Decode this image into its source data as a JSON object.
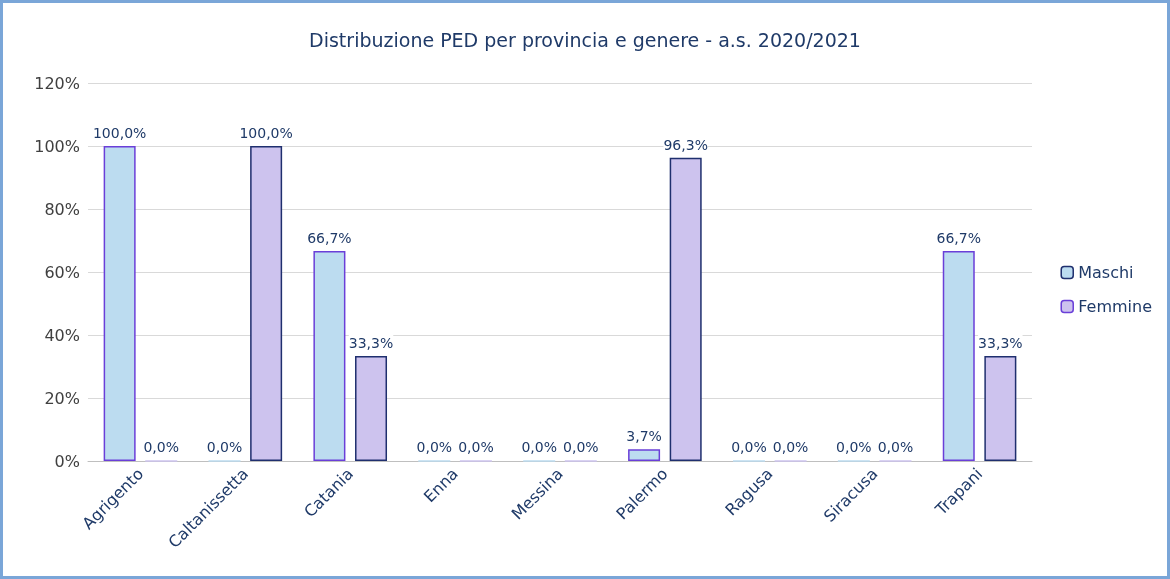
{
  "chart_data": {
    "type": "bar",
    "title": "Distribuzione PED per provincia e genere - a.s. 2020/2021",
    "categories": [
      "Agrigento",
      "Caltanissetta",
      "Catania",
      "Enna",
      "Messina",
      "Palermo",
      "Ragusa",
      "Siracusa",
      "Trapani"
    ],
    "series": [
      {
        "name": "Maschi",
        "color": "#bcdcf0",
        "values": [
          100,
          0,
          66.7,
          0,
          0,
          3.7,
          0,
          0,
          66.7
        ],
        "value_labels": [
          "100,0%",
          "0,0%",
          "66,7%",
          "0,0%",
          "0,0%",
          "3,7%",
          "0,0%",
          "0,0%",
          "66,7%"
        ]
      },
      {
        "name": "Femmine",
        "color": "#cdc3ee",
        "values": [
          0,
          100,
          33.3,
          0,
          0,
          96.3,
          0,
          0,
          33.3
        ],
        "value_labels": [
          "0,0%",
          "100,0%",
          "33,3%",
          "0,0%",
          "0,0%",
          "96,3%",
          "0,0%",
          "0,0%",
          "33,3%"
        ]
      }
    ],
    "ylim": [
      0,
      120
    ],
    "yticks": [
      {
        "value": 0,
        "label": "0%"
      },
      {
        "value": 20,
        "label": "20%"
      },
      {
        "value": 40,
        "label": "40%"
      },
      {
        "value": 60,
        "label": "60%"
      },
      {
        "value": 80,
        "label": "80%"
      },
      {
        "value": 100,
        "label": "100%"
      },
      {
        "value": 120,
        "label": "120%"
      }
    ],
    "grid": "y",
    "legend": "right"
  }
}
